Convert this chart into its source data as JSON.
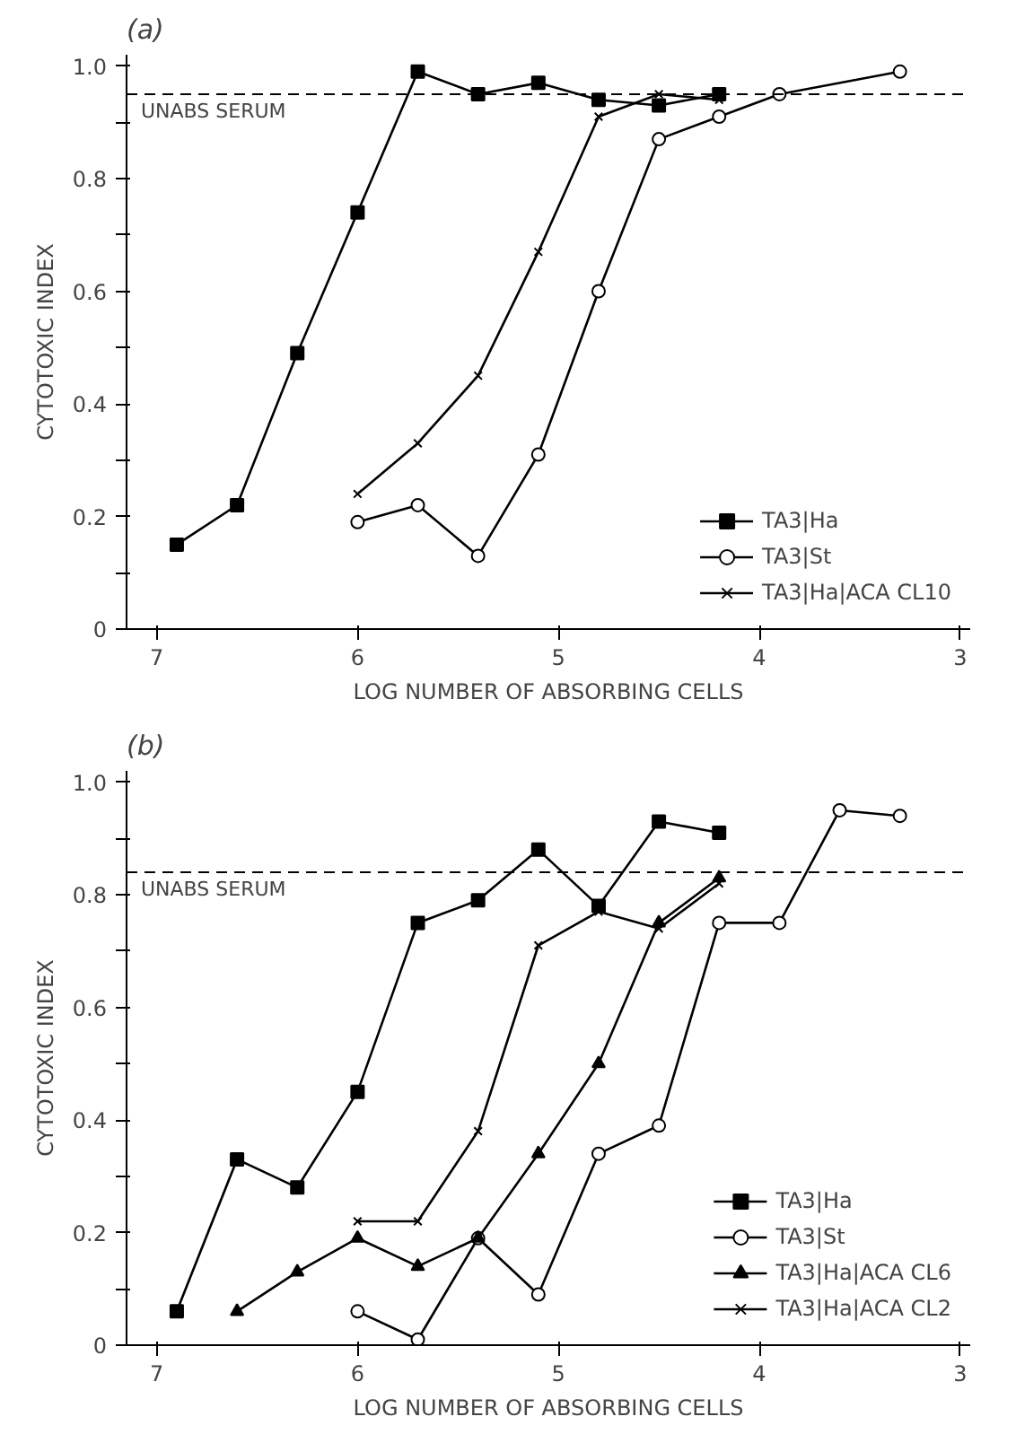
{
  "chart_data": [
    {
      "type": "line",
      "title": "(a)",
      "xlabel": "LOG NUMBER OF ABSORBING CELLS",
      "ylabel": "CYTOTOXIC INDEX",
      "xlim": [
        7.15,
        2.95
      ],
      "xticks": [
        7,
        6,
        5,
        4,
        3
      ],
      "ylim": [
        0,
        1.02
      ],
      "yticks": [
        0,
        {
          "value": 0.1,
          "label": null
        },
        {
          "value": 0.2,
          "label": "0.2"
        },
        {
          "value": 0.3,
          "label": null
        },
        0.4,
        {
          "value": 0.5,
          "label": null
        },
        0.6,
        {
          "value": 0.7,
          "label": null
        },
        0.8,
        {
          "value": 0.9,
          "label": null
        },
        {
          "value": 1.0,
          "label": "1.0"
        }
      ],
      "grid": false,
      "legend": "bottom right",
      "line_style": "solid",
      "ref_lines": [
        {
          "axis": "y",
          "value": 0.95,
          "label": "UNABS SERUM",
          "line_style": "dashed",
          "color": "#000000"
        }
      ],
      "series": [
        {
          "name": "TA3|Ha",
          "color": "#000000",
          "marker": "square",
          "x": [
            6.9,
            6.6,
            6.3,
            6.0,
            5.7,
            5.4,
            5.1,
            4.8,
            4.5,
            4.2
          ],
          "values": [
            0.15,
            0.22,
            0.49,
            0.74,
            0.99,
            0.95,
            0.97,
            0.94,
            0.93,
            0.95
          ]
        },
        {
          "name": "TA3|St",
          "color": "#000000",
          "marker": "circle",
          "x": [
            6.0,
            5.7,
            5.4,
            5.1,
            4.8,
            4.5,
            4.2,
            3.9,
            3.3
          ],
          "values": [
            0.19,
            0.22,
            0.13,
            0.31,
            0.6,
            0.87,
            0.91,
            0.95,
            0.99
          ]
        },
        {
          "name": "TA3|Ha|ACA CL10",
          "color": "#000000",
          "marker": "cross",
          "x": [
            6.0,
            5.7,
            5.4,
            5.1,
            4.8,
            4.5,
            4.2
          ],
          "values": [
            0.24,
            0.33,
            0.45,
            0.67,
            0.91,
            0.95,
            0.94
          ]
        }
      ]
    },
    {
      "type": "line",
      "title": "(b)",
      "xlabel": "LOG NUMBER OF ABSORBING CELLS",
      "ylabel": "CYTOTOXIC INDEX",
      "xlim": [
        7.15,
        2.95
      ],
      "xticks": [
        7,
        6,
        5,
        4,
        3
      ],
      "ylim": [
        0,
        1.02
      ],
      "yticks": [
        0,
        {
          "value": 0.1,
          "label": null
        },
        {
          "value": 0.2,
          "label": "0.2"
        },
        {
          "value": 0.3,
          "label": null
        },
        0.4,
        {
          "value": 0.5,
          "label": null
        },
        0.6,
        {
          "value": 0.7,
          "label": null
        },
        0.8,
        {
          "value": 0.9,
          "label": null
        },
        {
          "value": 1.0,
          "label": "1.0"
        }
      ],
      "grid": false,
      "legend": "bottom right",
      "line_style": "solid",
      "ref_lines": [
        {
          "axis": "y",
          "value": 0.84,
          "label": "UNABS SERUM",
          "line_style": "dashed",
          "color": "#000000"
        }
      ],
      "series": [
        {
          "name": "TA3|Ha",
          "color": "#000000",
          "marker": "square",
          "x": [
            6.9,
            6.6,
            6.3,
            6.0,
            5.7,
            5.4,
            5.1,
            4.8,
            4.5,
            4.2
          ],
          "values": [
            0.06,
            0.33,
            0.28,
            0.45,
            0.75,
            0.79,
            0.88,
            0.78,
            0.93,
            0.91
          ]
        },
        {
          "name": "TA3|St",
          "color": "#000000",
          "marker": "circle",
          "x": [
            6.0,
            5.7,
            5.4,
            5.1,
            4.8,
            4.5,
            4.2,
            3.9,
            3.6,
            3.3
          ],
          "values": [
            0.06,
            0.01,
            0.19,
            0.09,
            0.34,
            0.39,
            0.75,
            0.75,
            0.95,
            0.94
          ]
        },
        {
          "name": "TA3|Ha|ACA CL6",
          "color": "#000000",
          "marker": "triangle",
          "x": [
            6.6,
            6.3,
            6.0,
            5.7,
            5.4,
            5.1,
            4.8,
            4.5,
            4.2
          ],
          "values": [
            0.06,
            0.13,
            0.19,
            0.14,
            0.19,
            0.34,
            0.5,
            0.75,
            0.83
          ]
        },
        {
          "name": "TA3|Ha|ACA CL2",
          "color": "#000000",
          "marker": "cross",
          "x": [
            6.0,
            5.7,
            5.4,
            5.1,
            4.8,
            4.5,
            4.2
          ],
          "values": [
            0.22,
            0.22,
            0.38,
            0.71,
            0.77,
            0.74,
            0.82
          ]
        }
      ]
    }
  ]
}
